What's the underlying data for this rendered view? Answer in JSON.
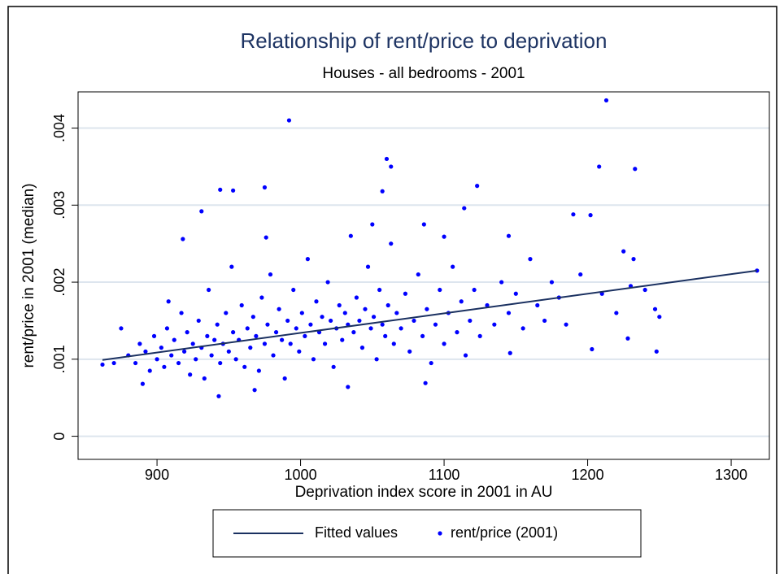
{
  "chart_data": {
    "type": "scatter",
    "title": "Relationship of rent/price to deprivation",
    "subtitle": "Houses - all bedrooms - 2001",
    "x_label": "Deprivation index score in 2001 in AU",
    "y_label": "rent/price in 2001 (median)",
    "xlim": [
      845,
      1326.6
    ],
    "ylim": [
      -0.0003,
      0.00447
    ],
    "xticks": [
      900,
      1000,
      1100,
      1200,
      1300
    ],
    "yticks": [
      0,
      {
        "value": 0.001,
        "label": ".001"
      },
      {
        "value": 0.002,
        "label": ".002"
      },
      {
        "value": 0.003,
        "label": ".003"
      },
      {
        "value": 0.004,
        "label": ".004"
      }
    ],
    "grid": true,
    "series": [
      {
        "name": "Fitted values",
        "type": "line",
        "color": "#1a3060",
        "x": [
          862,
          1318
        ],
        "values": [
          0.00099,
          0.00215
        ]
      },
      {
        "name": "rent/price (2001)",
        "type": "scatter",
        "color": "#0000ff",
        "x": [
          862,
          870,
          875,
          880,
          885,
          888,
          890,
          892,
          895,
          898,
          900,
          903,
          905,
          907,
          908,
          910,
          912,
          915,
          917,
          918,
          919,
          921,
          923,
          925,
          927,
          929,
          931,
          931,
          933,
          935,
          936,
          938,
          940,
          942,
          943,
          944,
          944,
          946,
          948,
          950,
          952,
          953,
          953,
          955,
          957,
          959,
          961,
          963,
          965,
          967,
          968,
          969,
          971,
          973,
          975,
          975,
          976,
          977,
          979,
          981,
          983,
          985,
          987,
          989,
          991,
          992,
          993,
          995,
          997,
          999,
          1001,
          1003,
          1005,
          1007,
          1009,
          1011,
          1013,
          1015,
          1017,
          1019,
          1021,
          1023,
          1025,
          1027,
          1029,
          1031,
          1033,
          1033,
          1035,
          1037,
          1039,
          1041,
          1043,
          1045,
          1047,
          1049,
          1050,
          1051,
          1053,
          1055,
          1057,
          1057,
          1059,
          1060,
          1061,
          1063,
          1063,
          1065,
          1067,
          1070,
          1073,
          1076,
          1079,
          1082,
          1085,
          1086,
          1087,
          1088,
          1091,
          1094,
          1097,
          1100,
          1100,
          1103,
          1106,
          1109,
          1112,
          1114,
          1115,
          1118,
          1121,
          1123,
          1125,
          1130,
          1135,
          1140,
          1145,
          1145,
          1146,
          1150,
          1155,
          1160,
          1165,
          1170,
          1175,
          1180,
          1185,
          1190,
          1195,
          1202,
          1203,
          1208,
          1210,
          1213,
          1220,
          1225,
          1228,
          1230,
          1232,
          1233,
          1240,
          1247,
          1248,
          1250,
          1318
        ],
        "values": [
          0.00093,
          0.00095,
          0.0014,
          0.00105,
          0.00095,
          0.0012,
          0.00068,
          0.0011,
          0.00085,
          0.0013,
          0.001,
          0.00115,
          0.0009,
          0.0014,
          0.00175,
          0.00105,
          0.00125,
          0.00095,
          0.0016,
          0.00256,
          0.0011,
          0.00135,
          0.0008,
          0.0012,
          0.001,
          0.0015,
          0.00115,
          0.00292,
          0.00075,
          0.0013,
          0.0019,
          0.00105,
          0.00125,
          0.00145,
          0.00052,
          0.00095,
          0.0032,
          0.0012,
          0.0016,
          0.0011,
          0.0022,
          0.00135,
          0.00319,
          0.001,
          0.00125,
          0.0017,
          0.0009,
          0.0014,
          0.00115,
          0.00155,
          0.0006,
          0.0013,
          0.00085,
          0.0018,
          0.0012,
          0.00323,
          0.00258,
          0.00145,
          0.0021,
          0.00105,
          0.00135,
          0.00165,
          0.00125,
          0.00075,
          0.0015,
          0.0041,
          0.0012,
          0.0019,
          0.0014,
          0.0011,
          0.0016,
          0.0013,
          0.0023,
          0.00145,
          0.001,
          0.00175,
          0.00135,
          0.00155,
          0.0012,
          0.002,
          0.0015,
          0.0009,
          0.0014,
          0.0017,
          0.00125,
          0.0016,
          0.00145,
          0.00064,
          0.0026,
          0.00135,
          0.0018,
          0.0015,
          0.00115,
          0.00165,
          0.0022,
          0.0014,
          0.00275,
          0.00155,
          0.001,
          0.0019,
          0.00145,
          0.00318,
          0.0013,
          0.0036,
          0.0017,
          0.0025,
          0.0035,
          0.0012,
          0.0016,
          0.0014,
          0.00185,
          0.0011,
          0.0015,
          0.0021,
          0.0013,
          0.00275,
          0.00069,
          0.00165,
          0.00095,
          0.00145,
          0.0019,
          0.0012,
          0.00259,
          0.0016,
          0.0022,
          0.00135,
          0.00175,
          0.00296,
          0.00105,
          0.0015,
          0.0019,
          0.00325,
          0.0013,
          0.0017,
          0.00145,
          0.002,
          0.0016,
          0.0026,
          0.00108,
          0.00185,
          0.0014,
          0.0023,
          0.0017,
          0.0015,
          0.002,
          0.0018,
          0.00145,
          0.00288,
          0.0021,
          0.00287,
          0.00113,
          0.0035,
          0.00185,
          0.00436,
          0.0016,
          0.0024,
          0.00127,
          0.00195,
          0.0023,
          0.00347,
          0.0019,
          0.00165,
          0.0011,
          0.00155,
          0.00215
        ]
      }
    ]
  }
}
